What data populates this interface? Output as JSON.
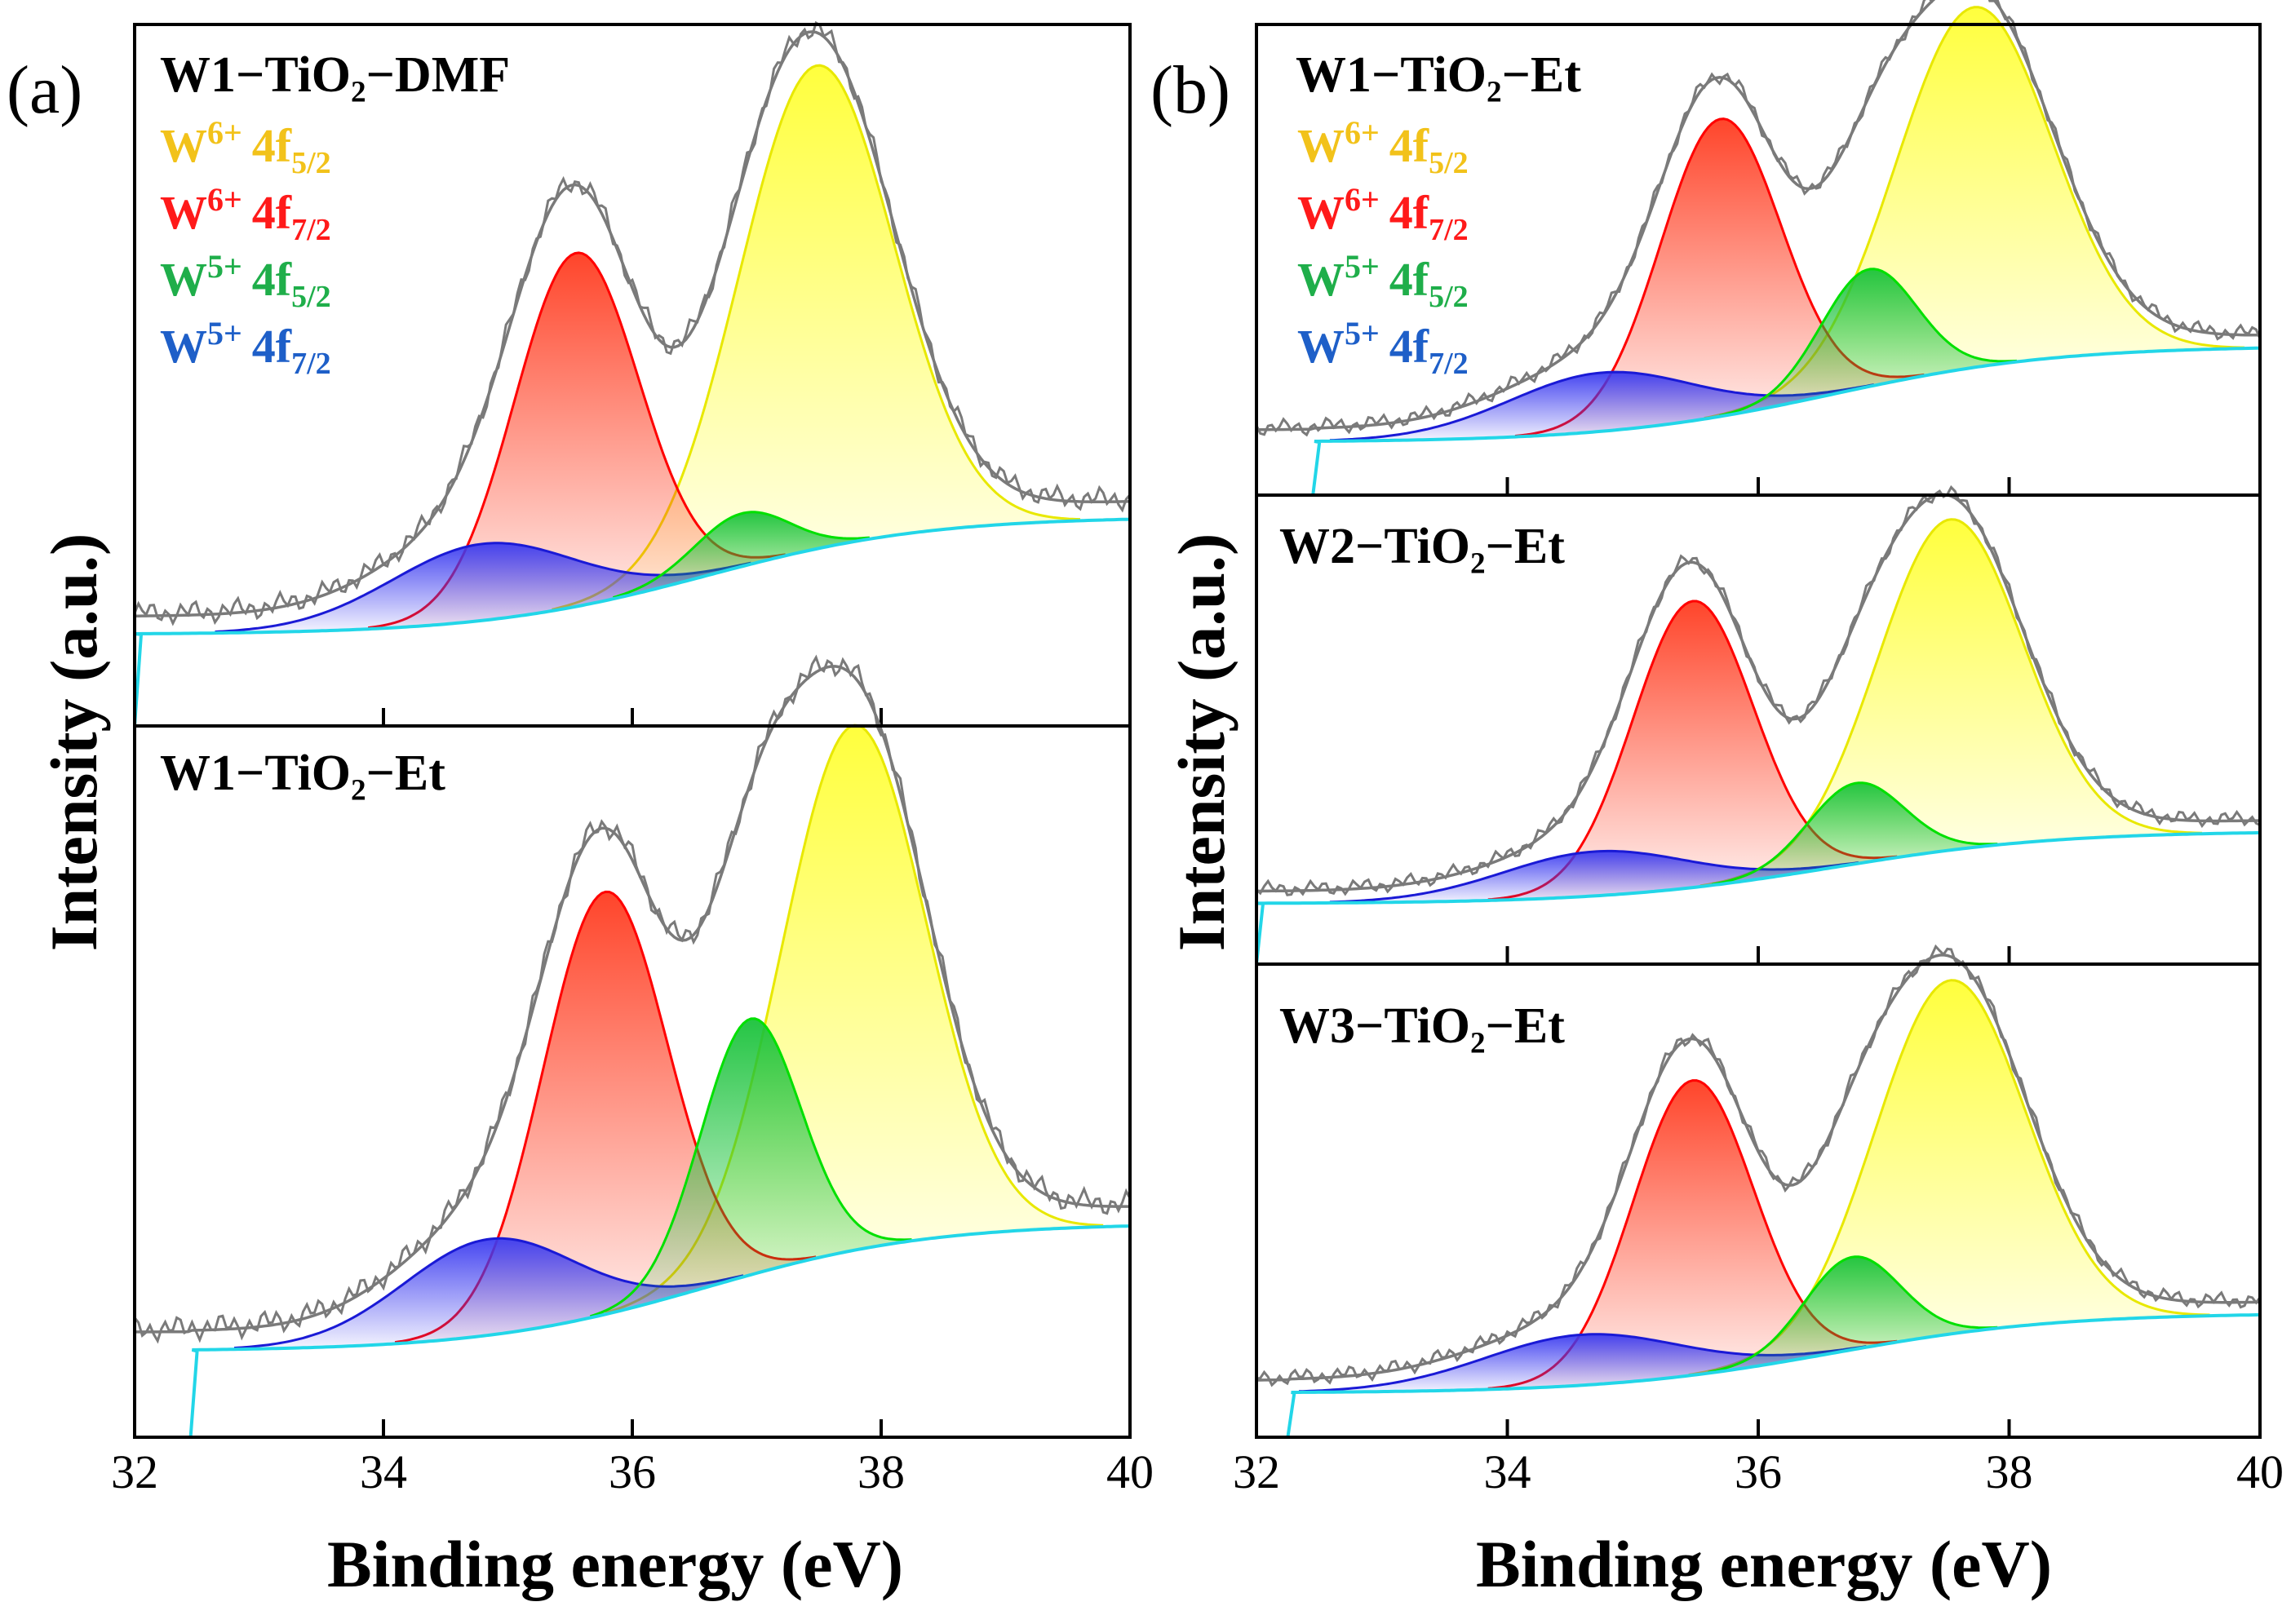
{
  "figure": {
    "panel_labels": [
      "(a)",
      "(b)"
    ],
    "legend": [
      {
        "ion": "W",
        "charge": "6+",
        "orbital": "4f",
        "sub": "5/2",
        "color": "#f2c21a"
      },
      {
        "ion": "W",
        "charge": "6+",
        "orbital": "4f",
        "sub": "7/2",
        "color": "#ff1a1a"
      },
      {
        "ion": "W",
        "charge": "5+",
        "orbital": "4f",
        "sub": "5/2",
        "color": "#1fae4a"
      },
      {
        "ion": "W",
        "charge": "5+",
        "orbital": "4f",
        "sub": "7/2",
        "color": "#1e5fc8"
      }
    ],
    "ylabel": "Intensity (a.u.)",
    "xlabel": "Binding energy (eV)",
    "colors": {
      "fill_W6_52": "#ffff33",
      "edge_W6_52": "#e8e800",
      "fill_W6_72": "#ff3b1f",
      "edge_W6_72": "#ff0000",
      "fill_W5_52": "#19c23a",
      "edge_W5_52": "#00e000",
      "fill_W5_72": "#3b3bf0",
      "edge_W5_72": "#1a1ad6",
      "background": "#22d6e8",
      "envelope": "#7a7a7a"
    }
  },
  "chart_data": [
    {
      "type": "area",
      "panel": "a-top",
      "title": "W1−TiO₂−DMF",
      "xlabel": "Binding energy (eV)",
      "ylabel": "Intensity (a.u.)",
      "xlim": [
        32,
        40
      ],
      "ylim": [
        0,
        1
      ],
      "xticks": [
        32,
        34,
        36,
        38,
        40
      ],
      "show_xticklabels": false,
      "background": {
        "start_x": 32.0,
        "low": 0.06,
        "high": 0.26
      },
      "series": [
        {
          "name": "W6+ 4f5/2",
          "center": 37.48,
          "height": 0.82,
          "sigma": 0.62
        },
        {
          "name": "W6+ 4f7/2",
          "center": 35.55,
          "height": 0.6,
          "sigma": 0.5
        },
        {
          "name": "W5+ 4f5/2",
          "center": 36.88,
          "height": 0.09,
          "sigma": 0.38
        },
        {
          "name": "W5+ 4f7/2",
          "center": 34.8,
          "height": 0.13,
          "sigma": 0.75
        }
      ]
    },
    {
      "type": "area",
      "panel": "a-bottom",
      "title": "W1−TiO₂−Et",
      "xlabel": "Binding energy (eV)",
      "ylabel": "Intensity (a.u.)",
      "xlim": [
        32,
        40
      ],
      "ylim": [
        0,
        1
      ],
      "xticks": [
        32,
        34,
        36,
        38,
        40
      ],
      "show_xticklabels": true,
      "background": {
        "start_x": 32.45,
        "low": 0.09,
        "high": 0.29
      },
      "series": [
        {
          "name": "W6+ 4f5/2",
          "center": 37.78,
          "height": 0.82,
          "sigma": 0.58
        },
        {
          "name": "W6+ 4f7/2",
          "center": 35.78,
          "height": 0.66,
          "sigma": 0.5
        },
        {
          "name": "W5+ 4f5/2",
          "center": 36.95,
          "height": 0.4,
          "sigma": 0.4
        },
        {
          "name": "W5+ 4f7/2",
          "center": 34.85,
          "height": 0.15,
          "sigma": 0.7
        }
      ]
    },
    {
      "type": "area",
      "panel": "b-top",
      "title": "W1−TiO₂−Et",
      "xlabel": "Binding energy (eV)",
      "ylabel": "Intensity (a.u.)",
      "xlim": [
        32,
        40
      ],
      "ylim": [
        0,
        1
      ],
      "xticks": [
        32,
        34,
        36,
        38,
        40
      ],
      "show_xticklabels": false,
      "background": {
        "start_x": 32.45,
        "low": 0.07,
        "high": 0.3
      },
      "series": [
        {
          "name": "W6+ 4f5/2",
          "center": 37.72,
          "height": 0.86,
          "sigma": 0.62
        },
        {
          "name": "W6+ 4f7/2",
          "center": 35.7,
          "height": 0.71,
          "sigma": 0.48
        },
        {
          "name": "W5+ 4f5/2",
          "center": 36.88,
          "height": 0.28,
          "sigma": 0.38
        },
        {
          "name": "W5+ 4f7/2",
          "center": 34.75,
          "height": 0.14,
          "sigma": 0.75
        }
      ]
    },
    {
      "type": "area",
      "panel": "b-middle",
      "title": "W2−TiO₂−Et",
      "xlabel": "Binding energy (eV)",
      "ylabel": "Intensity (a.u.)",
      "xlim": [
        32,
        40
      ],
      "ylim": [
        0,
        1
      ],
      "xticks": [
        32,
        34,
        36,
        38,
        40
      ],
      "show_xticklabels": false,
      "background": {
        "start_x": 32.0,
        "low": 0.08,
        "high": 0.26
      },
      "series": [
        {
          "name": "W6+ 4f5/2",
          "center": 37.53,
          "height": 0.82,
          "sigma": 0.58
        },
        {
          "name": "W6+ 4f7/2",
          "center": 35.48,
          "height": 0.71,
          "sigma": 0.48
        },
        {
          "name": "W5+ 4f5/2",
          "center": 36.78,
          "height": 0.2,
          "sigma": 0.38
        },
        {
          "name": "W5+ 4f7/2",
          "center": 34.7,
          "height": 0.11,
          "sigma": 0.75
        }
      ]
    },
    {
      "type": "area",
      "panel": "b-bottom",
      "title": "W3−TiO₂−Et",
      "xlabel": "Binding energy (eV)",
      "ylabel": "Intensity (a.u.)",
      "xlim": [
        32,
        40
      ],
      "ylim": [
        0,
        1
      ],
      "xticks": [
        32,
        34,
        36,
        38,
        40
      ],
      "show_xticklabels": true,
      "background": {
        "start_x": 32.25,
        "low": 0.06,
        "high": 0.25
      },
      "series": [
        {
          "name": "W6+ 4f5/2",
          "center": 37.53,
          "height": 0.84,
          "sigma": 0.6
        },
        {
          "name": "W6+ 4f7/2",
          "center": 35.48,
          "height": 0.7,
          "sigma": 0.48
        },
        {
          "name": "W5+ 4f5/2",
          "center": 36.75,
          "height": 0.22,
          "sigma": 0.38
        },
        {
          "name": "W5+ 4f7/2",
          "center": 34.6,
          "height": 0.12,
          "sigma": 0.8
        }
      ]
    }
  ]
}
